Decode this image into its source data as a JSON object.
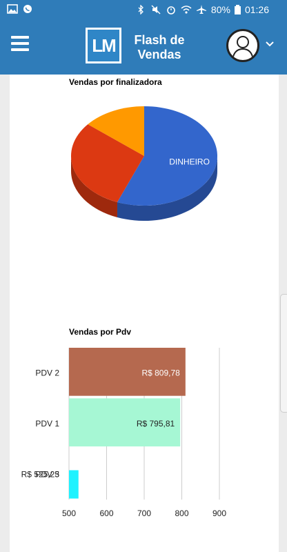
{
  "status_bar": {
    "battery": "80%",
    "time": "01:26",
    "icons": [
      "image-icon",
      "whatsapp-icon",
      "bluetooth-icon",
      "mute-icon",
      "alarm-icon",
      "wifi-icon",
      "airplane-icon",
      "battery-icon"
    ]
  },
  "app_bar": {
    "logo_text": "LM",
    "title_line1": "Flash de",
    "title_line2": "Vendas",
    "menu_icon": "hamburger-icon",
    "profile_icon": "user-avatar-icon",
    "dropdown_icon": "chevron-down-icon",
    "color": "#2f7cb9"
  },
  "chart_data": [
    {
      "type": "pie",
      "title": "Vendas por finalizadora",
      "slices": [
        {
          "label": "DINHEIRO",
          "value": 56,
          "color": "#3366cc"
        },
        {
          "label": "",
          "value": 30,
          "color": "#dc3912"
        },
        {
          "label": "",
          "value": 14,
          "color": "#ff9900"
        }
      ]
    },
    {
      "type": "bar",
      "orientation": "horizontal",
      "title": "Vendas por Pdv",
      "categories": [
        "PDV 2",
        "PDV 1",
        "PDV 3"
      ],
      "values": [
        809.78,
        795.81,
        525.25
      ],
      "value_labels": [
        "R$ 809,78",
        "R$ 795,81",
        "R$ 525,25"
      ],
      "colors": [
        "#b5694f",
        "#a6f7d4",
        "#1ff2ff"
      ],
      "xlim": [
        500,
        900
      ],
      "xticks": [
        "500",
        "600",
        "700",
        "800",
        "900"
      ]
    }
  ]
}
